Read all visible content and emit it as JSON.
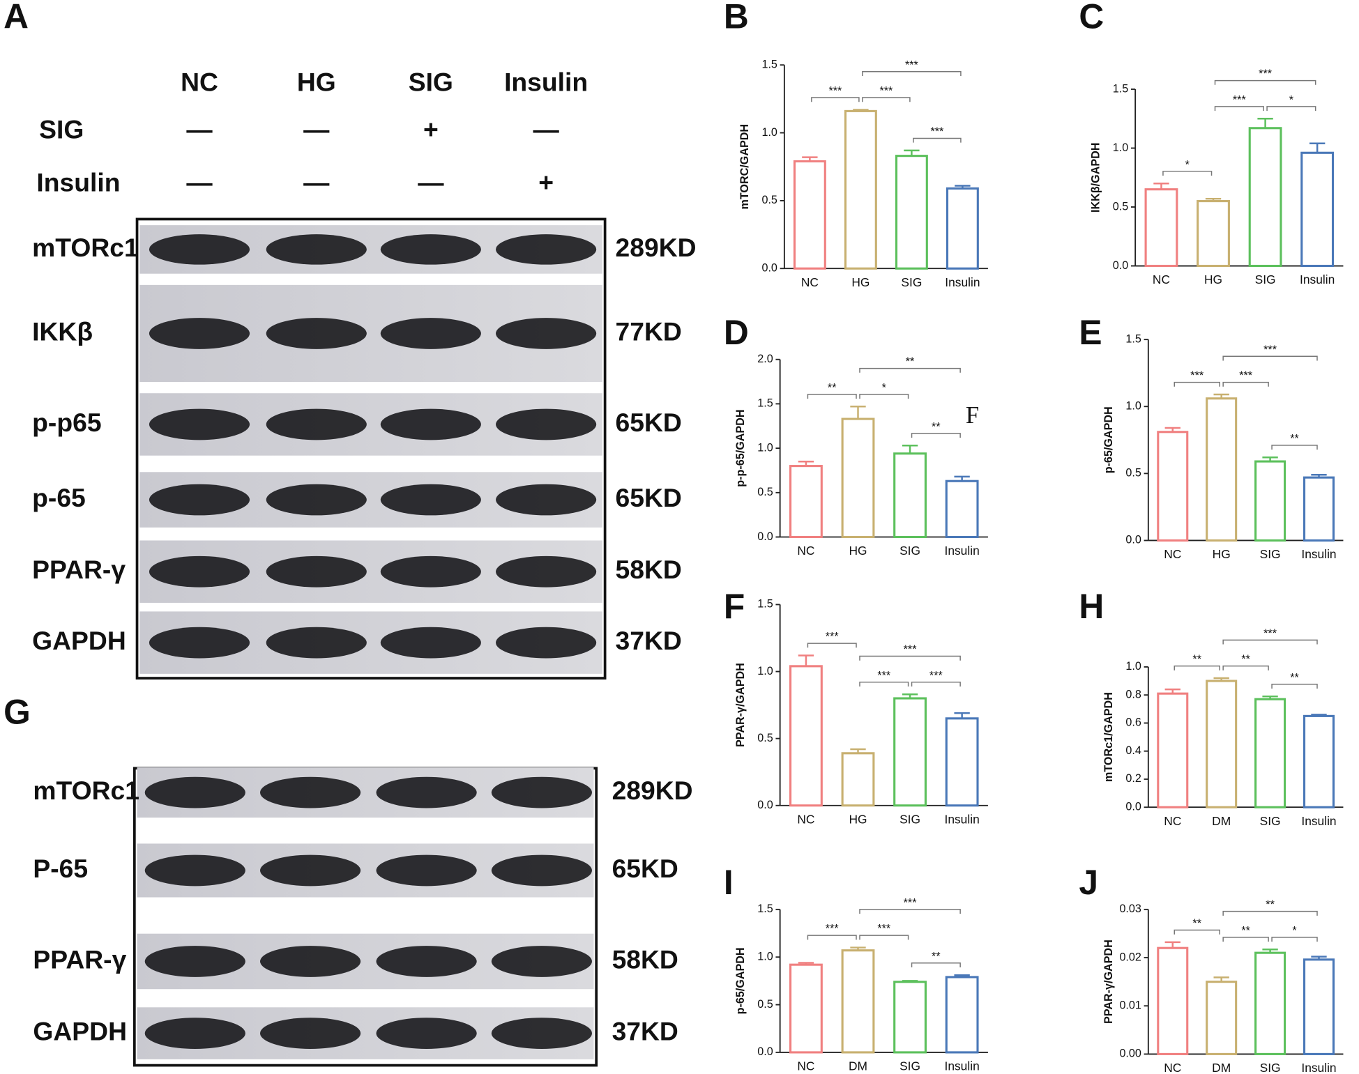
{
  "blots": [
    {
      "panel": "A",
      "lanes": [
        "NC",
        "HG",
        "SIG",
        "Insulin"
      ],
      "treatments": [
        {
          "name": "SIG",
          "signs": [
            "—",
            "—",
            "+",
            "—"
          ]
        },
        {
          "name": "Insulin",
          "signs": [
            "—",
            "—",
            "—",
            "+"
          ]
        }
      ],
      "bands": [
        {
          "protein": "mTORc1",
          "size": "289KD"
        },
        {
          "protein": "IKKβ",
          "size": "77KD"
        },
        {
          "protein": "p-p65",
          "size": "65KD"
        },
        {
          "protein": "p-65",
          "size": "65KD"
        },
        {
          "protein": "PPAR-γ",
          "size": "58KD"
        },
        {
          "protein": "GAPDH",
          "size": "37KD"
        }
      ]
    },
    {
      "panel": "G",
      "bands": [
        {
          "protein": "mTORc1",
          "size": "289KD"
        },
        {
          "protein": "P-65",
          "size": "65KD"
        },
        {
          "protein": "PPAR-γ",
          "size": "58KD"
        },
        {
          "protein": "GAPDH",
          "size": "37KD"
        }
      ]
    }
  ],
  "chart_data": [
    {
      "type": "bar",
      "panel": "B",
      "ylabel": "mTORC/GAPDH",
      "categories": [
        "NC",
        "HG",
        "SIG",
        "Insulin"
      ],
      "values": [
        0.79,
        1.16,
        0.83,
        0.59
      ],
      "errors": [
        0.03,
        0.01,
        0.04,
        0.02
      ],
      "colors": [
        "#f08080",
        "#c8b070",
        "#5cc05c",
        "#4a78b8"
      ],
      "ylim": [
        0,
        1.5
      ],
      "yticks": [
        {
          "value": 0,
          "label": "0.0"
        },
        0.5,
        {
          "value": 1,
          "label": "1.0"
        },
        1.5
      ],
      "brackets": [
        {
          "from": 0,
          "to": 1,
          "label": "***"
        },
        {
          "from": 1,
          "to": 2,
          "label": "***"
        },
        {
          "from": 2,
          "to": 3,
          "label": "***"
        },
        {
          "from": 1,
          "to": 3,
          "label": "***"
        }
      ]
    },
    {
      "type": "bar",
      "panel": "C",
      "ylabel": "IKKβ/GAPDH",
      "categories": [
        "NC",
        "HG",
        "SIG",
        "Insulin"
      ],
      "values": [
        0.65,
        0.55,
        1.17,
        0.96
      ],
      "errors": [
        0.05,
        0.02,
        0.08,
        0.08
      ],
      "colors": [
        "#f08080",
        "#c8b070",
        "#5cc05c",
        "#4a78b8"
      ],
      "ylim": [
        0,
        1.5
      ],
      "yticks": [
        {
          "value": 0,
          "label": "0.0"
        },
        0.5,
        {
          "value": 1,
          "label": "1.0"
        },
        1.5
      ],
      "brackets": [
        {
          "from": 0,
          "to": 1,
          "label": "*"
        },
        {
          "from": 1,
          "to": 2,
          "label": "***"
        },
        {
          "from": 2,
          "to": 3,
          "label": "*"
        },
        {
          "from": 1,
          "to": 3,
          "label": "***"
        }
      ]
    },
    {
      "type": "bar",
      "panel": "D",
      "ylabel": "p-p-65/GAPDH",
      "categories": [
        "NC",
        "HG",
        "SIG",
        "Insulin"
      ],
      "values": [
        0.8,
        1.33,
        0.94,
        0.63
      ],
      "errors": [
        0.05,
        0.14,
        0.09,
        0.05
      ],
      "colors": [
        "#f08080",
        "#c8b070",
        "#5cc05c",
        "#4a78b8"
      ],
      "ylim": [
        0,
        2
      ],
      "yticks": [
        {
          "value": 0,
          "label": "0.0"
        },
        0.5,
        {
          "value": 1,
          "label": "1.0"
        },
        1.5,
        {
          "value": 2,
          "label": "2.0"
        }
      ],
      "brackets": [
        {
          "from": 0,
          "to": 1,
          "label": "**"
        },
        {
          "from": 1,
          "to": 2,
          "label": "*"
        },
        {
          "from": 2,
          "to": 3,
          "label": "**"
        },
        {
          "from": 1,
          "to": 3,
          "label": "**"
        }
      ],
      "annotation": "F"
    },
    {
      "type": "bar",
      "panel": "E",
      "ylabel": "p-65/GAPDH",
      "categories": [
        "NC",
        "HG",
        "SIG",
        "Insulin"
      ],
      "values": [
        0.81,
        1.06,
        0.59,
        0.47
      ],
      "errors": [
        0.03,
        0.03,
        0.03,
        0.02
      ],
      "colors": [
        "#f08080",
        "#c8b070",
        "#5cc05c",
        "#4a78b8"
      ],
      "ylim": [
        0,
        1.5
      ],
      "yticks": [
        {
          "value": 0,
          "label": "0.0"
        },
        0.5,
        {
          "value": 1,
          "label": "1.0"
        },
        1.5
      ],
      "brackets": [
        {
          "from": 0,
          "to": 1,
          "label": "***"
        },
        {
          "from": 1,
          "to": 2,
          "label": "***"
        },
        {
          "from": 1,
          "to": 3,
          "label": "***"
        },
        {
          "from": 2,
          "to": 3,
          "label": "**"
        }
      ]
    },
    {
      "type": "bar",
      "panel": "F",
      "ylabel": "PPAR-γ/GAPDH",
      "categories": [
        "NC",
        "HG",
        "SIG",
        "Insulin"
      ],
      "values": [
        1.04,
        0.39,
        0.8,
        0.65
      ],
      "errors": [
        0.08,
        0.03,
        0.03,
        0.04
      ],
      "colors": [
        "#f08080",
        "#c8b070",
        "#5cc05c",
        "#4a78b8"
      ],
      "ylim": [
        0,
        1.5
      ],
      "yticks": [
        {
          "value": 0,
          "label": "0.0"
        },
        0.5,
        {
          "value": 1,
          "label": "1.0"
        },
        1.5
      ],
      "brackets": [
        {
          "from": 0,
          "to": 1,
          "label": "***"
        },
        {
          "from": 1,
          "to": 2,
          "label": "***"
        },
        {
          "from": 2,
          "to": 3,
          "label": "***"
        },
        {
          "from": 1,
          "to": 3,
          "label": "***"
        }
      ]
    },
    {
      "type": "bar",
      "panel": "H",
      "ylabel": "mTORc1/GAPDH",
      "categories": [
        "NC",
        "DM",
        "SIG",
        "Insulin"
      ],
      "values": [
        0.81,
        0.9,
        0.77,
        0.65
      ],
      "errors": [
        0.03,
        0.02,
        0.02,
        0.01
      ],
      "colors": [
        "#f08080",
        "#c8b070",
        "#5cc05c",
        "#4a78b8"
      ],
      "ylim": [
        0,
        1
      ],
      "yticks": [
        {
          "value": 0,
          "label": "0.0"
        },
        0.2,
        0.4,
        0.6,
        0.8,
        {
          "value": 1,
          "label": "1.0"
        }
      ],
      "brackets": [
        {
          "from": 0,
          "to": 1,
          "label": "**"
        },
        {
          "from": 1,
          "to": 2,
          "label": "**"
        },
        {
          "from": 2,
          "to": 3,
          "label": "**"
        },
        {
          "from": 1,
          "to": 3,
          "label": "***"
        }
      ]
    },
    {
      "type": "bar",
      "panel": "I",
      "ylabel": "p-65/GAPDH",
      "categories": [
        "NC",
        "DM",
        "SIG",
        "Insulin"
      ],
      "values": [
        0.92,
        1.07,
        0.74,
        0.79
      ],
      "errors": [
        0.02,
        0.03,
        0.01,
        0.02
      ],
      "colors": [
        "#f08080",
        "#c8b070",
        "#5cc05c",
        "#4a78b8"
      ],
      "ylim": [
        0,
        1.5
      ],
      "yticks": [
        {
          "value": 0,
          "label": "0.0"
        },
        0.5,
        {
          "value": 1,
          "label": "1.0"
        },
        1.5
      ],
      "brackets": [
        {
          "from": 0,
          "to": 1,
          "label": "***"
        },
        {
          "from": 1,
          "to": 2,
          "label": "***"
        },
        {
          "from": 2,
          "to": 3,
          "label": "**"
        },
        {
          "from": 1,
          "to": 3,
          "label": "***"
        }
      ]
    },
    {
      "type": "bar",
      "panel": "J",
      "ylabel": "PPAR-γ/GAPDH",
      "categories": [
        "NC",
        "DM",
        "SIG",
        "Insulin"
      ],
      "values": [
        0.022,
        0.015,
        0.021,
        0.0196
      ],
      "errors": [
        0.0012,
        0.0009,
        0.0007,
        0.0006
      ],
      "colors": [
        "#f08080",
        "#c8b070",
        "#5cc05c",
        "#4a78b8"
      ],
      "ylim": [
        0,
        0.03
      ],
      "yticks": [
        {
          "value": 0,
          "label": "0.00"
        },
        0.01,
        0.02,
        0.03
      ],
      "brackets": [
        {
          "from": 0,
          "to": 1,
          "label": "**"
        },
        {
          "from": 1,
          "to": 2,
          "label": "**"
        },
        {
          "from": 2,
          "to": 3,
          "label": "*"
        },
        {
          "from": 1,
          "to": 3,
          "label": "**"
        }
      ]
    }
  ]
}
